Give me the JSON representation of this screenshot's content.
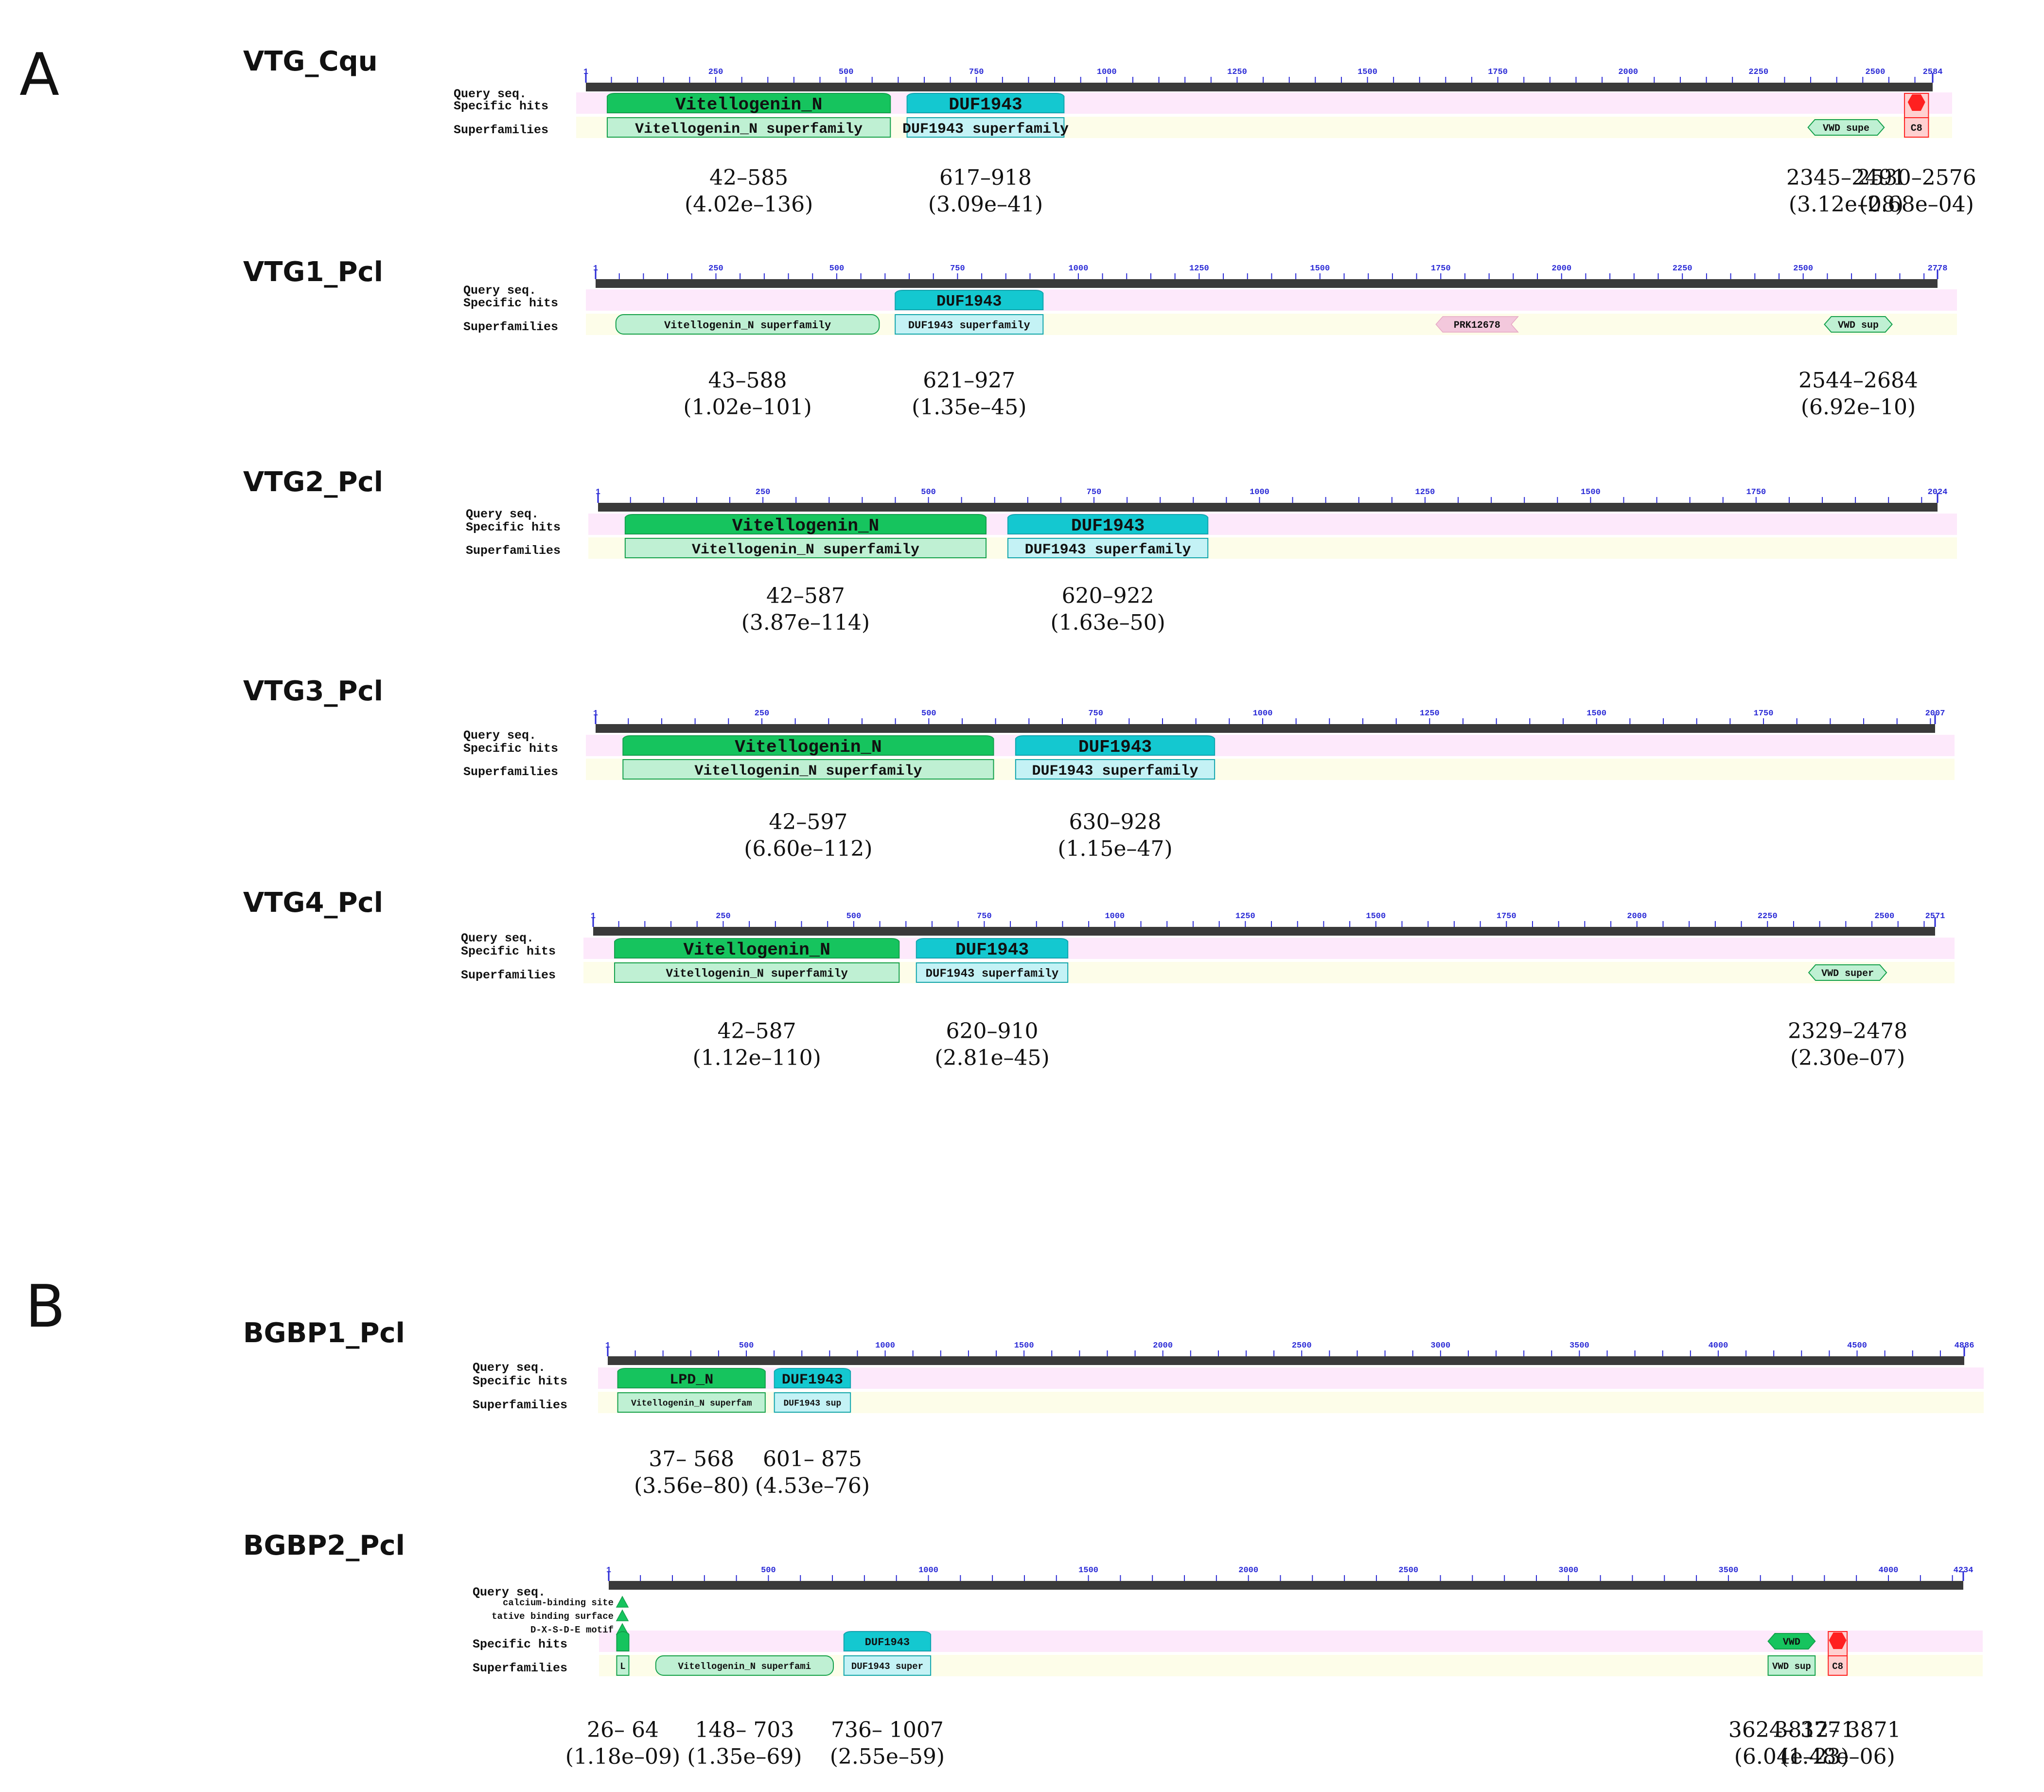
{
  "panels": [
    {
      "label": "A",
      "name": "panel-a"
    },
    {
      "label": "B",
      "name": "panel-b"
    }
  ],
  "row_labels": {
    "query": "Query seq.",
    "specific": "Specific hits",
    "superfamilies": "Superfamilies"
  },
  "proteins": [
    {
      "name": "VTG_Cqu",
      "length": 2584,
      "ticks": [
        1,
        250,
        500,
        750,
        1000,
        1250,
        1500,
        1750,
        2000,
        2250,
        2500,
        2584
      ],
      "features": [
        {
          "row": "specific",
          "start": 42,
          "end": 585,
          "label": "Vitellogenin_N",
          "style": "green"
        },
        {
          "row": "specific",
          "start": 617,
          "end": 918,
          "label": "DUF1943",
          "style": "cyan"
        },
        {
          "row": "specific",
          "start": 2530,
          "end": 2576,
          "label": "",
          "style": "redhex"
        },
        {
          "row": "super",
          "start": 42,
          "end": 585,
          "label": "Vitellogenin_N superfamily",
          "style": "lgreen"
        },
        {
          "row": "super",
          "start": 617,
          "end": 918,
          "label": "DUF1943 superfamily",
          "style": "lcyan"
        },
        {
          "row": "super",
          "start": 2345,
          "end": 2491,
          "label": "VWD supe",
          "style": "lgreenhex"
        },
        {
          "row": "super",
          "start": 2530,
          "end": 2576,
          "label": "C8",
          "style": "lred"
        }
      ],
      "annotations": [
        {
          "start": 42,
          "end": 585,
          "range": "42–585",
          "evalue": "(4.02e–136)"
        },
        {
          "start": 617,
          "end": 918,
          "range": "617–918",
          "evalue": "(3.09e–41)"
        },
        {
          "start": 2345,
          "end": 2491,
          "range": "2345–2491",
          "evalue": "(3.12e–08)"
        },
        {
          "start": 2530,
          "end": 2576,
          "range": "2530–2576",
          "evalue": "(2.68e–04)"
        }
      ]
    },
    {
      "name": "VTG1_Pcl",
      "length": 2778,
      "ticks": [
        1,
        250,
        500,
        750,
        1000,
        1250,
        1500,
        1750,
        2000,
        2250,
        2500,
        2778
      ],
      "features": [
        {
          "row": "specific",
          "start": 621,
          "end": 927,
          "label": "DUF1943",
          "style": "cyan"
        },
        {
          "row": "super",
          "start": 43,
          "end": 588,
          "label": "Vitellogenin_N superfamily",
          "style": "lgreenrounded"
        },
        {
          "row": "super",
          "start": 621,
          "end": 927,
          "label": "DUF1943 superfamily",
          "style": "lcyan"
        },
        {
          "row": "super",
          "start": 1740,
          "end": 1910,
          "label": "PRK12678",
          "style": "pinkarrow"
        },
        {
          "row": "super",
          "start": 2544,
          "end": 2684,
          "label": "VWD sup",
          "style": "lgreenhex"
        }
      ],
      "annotations": [
        {
          "start": 43,
          "end": 588,
          "range": "43–588",
          "evalue": "(1.02e–101)"
        },
        {
          "start": 621,
          "end": 927,
          "range": "621–927",
          "evalue": "(1.35e–45)"
        },
        {
          "start": 2544,
          "end": 2684,
          "range": "2544–2684",
          "evalue": "(6.92e–10)"
        }
      ]
    },
    {
      "name": "VTG2_Pcl",
      "length": 2024,
      "ticks": [
        1,
        250,
        500,
        750,
        1000,
        1250,
        1500,
        1750,
        2024
      ],
      "features": [
        {
          "row": "specific",
          "start": 42,
          "end": 587,
          "label": "Vitellogenin_N",
          "style": "green"
        },
        {
          "row": "specific",
          "start": 620,
          "end": 922,
          "label": "DUF1943",
          "style": "cyan"
        },
        {
          "row": "super",
          "start": 42,
          "end": 587,
          "label": "Vitellogenin_N superfamily",
          "style": "lgreen"
        },
        {
          "row": "super",
          "start": 620,
          "end": 922,
          "label": "DUF1943 superfamily",
          "style": "lcyan"
        }
      ],
      "annotations": [
        {
          "start": 42,
          "end": 587,
          "range": "42–587",
          "evalue": "(3.87e–114)"
        },
        {
          "start": 620,
          "end": 922,
          "range": "620–922",
          "evalue": "(1.63e–50)"
        }
      ]
    },
    {
      "name": "VTG3_Pcl",
      "length": 2007,
      "ticks": [
        1,
        250,
        500,
        750,
        1000,
        1250,
        1500,
        1750,
        2007
      ],
      "features": [
        {
          "row": "specific",
          "start": 42,
          "end": 597,
          "label": "Vitellogenin_N",
          "style": "green"
        },
        {
          "row": "specific",
          "start": 630,
          "end": 928,
          "label": "DUF1943",
          "style": "cyan"
        },
        {
          "row": "super",
          "start": 42,
          "end": 597,
          "label": "Vitellogenin_N superfamily",
          "style": "lgreen"
        },
        {
          "row": "super",
          "start": 630,
          "end": 928,
          "label": "DUF1943 superfamily",
          "style": "lcyan"
        }
      ],
      "annotations": [
        {
          "start": 42,
          "end": 597,
          "range": "42–597",
          "evalue": "(6.60e–112)"
        },
        {
          "start": 630,
          "end": 928,
          "range": "630–928",
          "evalue": "(1.15e–47)"
        }
      ]
    },
    {
      "name": "VTG4_Pcl",
      "length": 2571,
      "ticks": [
        1,
        250,
        500,
        750,
        1000,
        1250,
        1500,
        1750,
        2000,
        2250,
        2500,
        2571
      ],
      "features": [
        {
          "row": "specific",
          "start": 42,
          "end": 587,
          "label": "Vitellogenin_N",
          "style": "green"
        },
        {
          "row": "specific",
          "start": 620,
          "end": 910,
          "label": "DUF1943",
          "style": "cyan"
        },
        {
          "row": "super",
          "start": 42,
          "end": 587,
          "label": "Vitellogenin_N superfamily",
          "style": "lgreen"
        },
        {
          "row": "super",
          "start": 620,
          "end": 910,
          "label": "DUF1943 superfamily",
          "style": "lcyan"
        },
        {
          "row": "super",
          "start": 2329,
          "end": 2478,
          "label": "VWD super",
          "style": "lgreenhex"
        }
      ],
      "annotations": [
        {
          "start": 42,
          "end": 587,
          "range": "42–587",
          "evalue": "(1.12e–110)"
        },
        {
          "start": 620,
          "end": 910,
          "range": "620–910",
          "evalue": "(2.81e–45)"
        },
        {
          "start": 2329,
          "end": 2478,
          "range": "2329–2478",
          "evalue": "(2.30e–07)"
        }
      ]
    },
    {
      "name": "BGBP1_Pcl",
      "length": 4886,
      "ticks": [
        1,
        500,
        1000,
        1500,
        2000,
        2500,
        3000,
        3500,
        4000,
        4500,
        4886
      ],
      "features": [
        {
          "row": "specific",
          "start": 37,
          "end": 568,
          "label": "LPD_N",
          "style": "green"
        },
        {
          "row": "specific",
          "start": 601,
          "end": 875,
          "label": "DUF1943",
          "style": "cyan"
        },
        {
          "row": "super",
          "start": 37,
          "end": 568,
          "label": "Vitellogenin_N superfam",
          "style": "lgreen"
        },
        {
          "row": "super",
          "start": 601,
          "end": 875,
          "label": "DUF1943 sup",
          "style": "lcyan"
        }
      ],
      "annotations": [
        {
          "start": 37,
          "end": 568,
          "range": "37– 568",
          "evalue": "(3.56e–80)"
        },
        {
          "start": 601,
          "end": 875,
          "range": "601– 875",
          "evalue": "(4.53e–76)"
        }
      ]
    },
    {
      "name": "BGBP2_Pcl",
      "length": 4234,
      "ticks": [
        1,
        500,
        1000,
        1500,
        2000,
        2500,
        3000,
        3500,
        4000,
        4234
      ],
      "site_labels": [
        "calcium-binding site",
        "tative binding surface",
        "D-X-S-D-E motif"
      ],
      "features": [
        {
          "row": "specific",
          "start": 26,
          "end": 64,
          "label": "",
          "style": "green"
        },
        {
          "row": "specific",
          "start": 736,
          "end": 1007,
          "label": "DUF1943",
          "style": "cyan"
        },
        {
          "row": "specific",
          "start": 3624,
          "end": 3771,
          "label": "VWD",
          "style": "greenhex"
        },
        {
          "row": "specific",
          "start": 3812,
          "end": 3871,
          "label": "",
          "style": "redhex"
        },
        {
          "row": "super",
          "start": 26,
          "end": 64,
          "label": "L",
          "style": "lgreen"
        },
        {
          "row": "super",
          "start": 148,
          "end": 703,
          "label": "Vitellogenin_N superfami",
          "style": "lgreenrounded"
        },
        {
          "row": "super",
          "start": 736,
          "end": 1007,
          "label": "DUF1943 super",
          "style": "lcyan"
        },
        {
          "row": "super",
          "start": 3624,
          "end": 3771,
          "label": "VWD sup",
          "style": "lgreen"
        },
        {
          "row": "super",
          "start": 3812,
          "end": 3871,
          "label": "C8",
          "style": "lred"
        }
      ],
      "annotations": [
        {
          "start": 26,
          "end": 64,
          "range": "26– 64",
          "evalue": "(1.18e–09)"
        },
        {
          "start": 148,
          "end": 703,
          "range": "148– 703",
          "evalue": "(1.35e–69)"
        },
        {
          "start": 736,
          "end": 1007,
          "range": "736– 1007",
          "evalue": "(2.55e–59)"
        },
        {
          "start": 3624,
          "end": 3771,
          "range": "3624– 3771",
          "evalue": "(6.04e–23)"
        },
        {
          "start": 3812,
          "end": 3871,
          "range": "3812– 3871",
          "evalue": "(1.48e–06)"
        }
      ]
    }
  ],
  "colors": {
    "query_bar": "#3a3a3a",
    "tick": "#2a2ad6",
    "specific_band": "#fde9fb",
    "super_band": "#fdfde9",
    "green_fill": "#16c45e",
    "green_light": "#bff0d3",
    "green_stroke": "#13a04b",
    "cyan_fill": "#14c8d0",
    "cyan_light": "#c4f2f5",
    "cyan_stroke": "#10a5ad",
    "red_fill": "#ff2020",
    "red_light": "#ffd0d0",
    "pink_fill": "#f3c8dc"
  }
}
